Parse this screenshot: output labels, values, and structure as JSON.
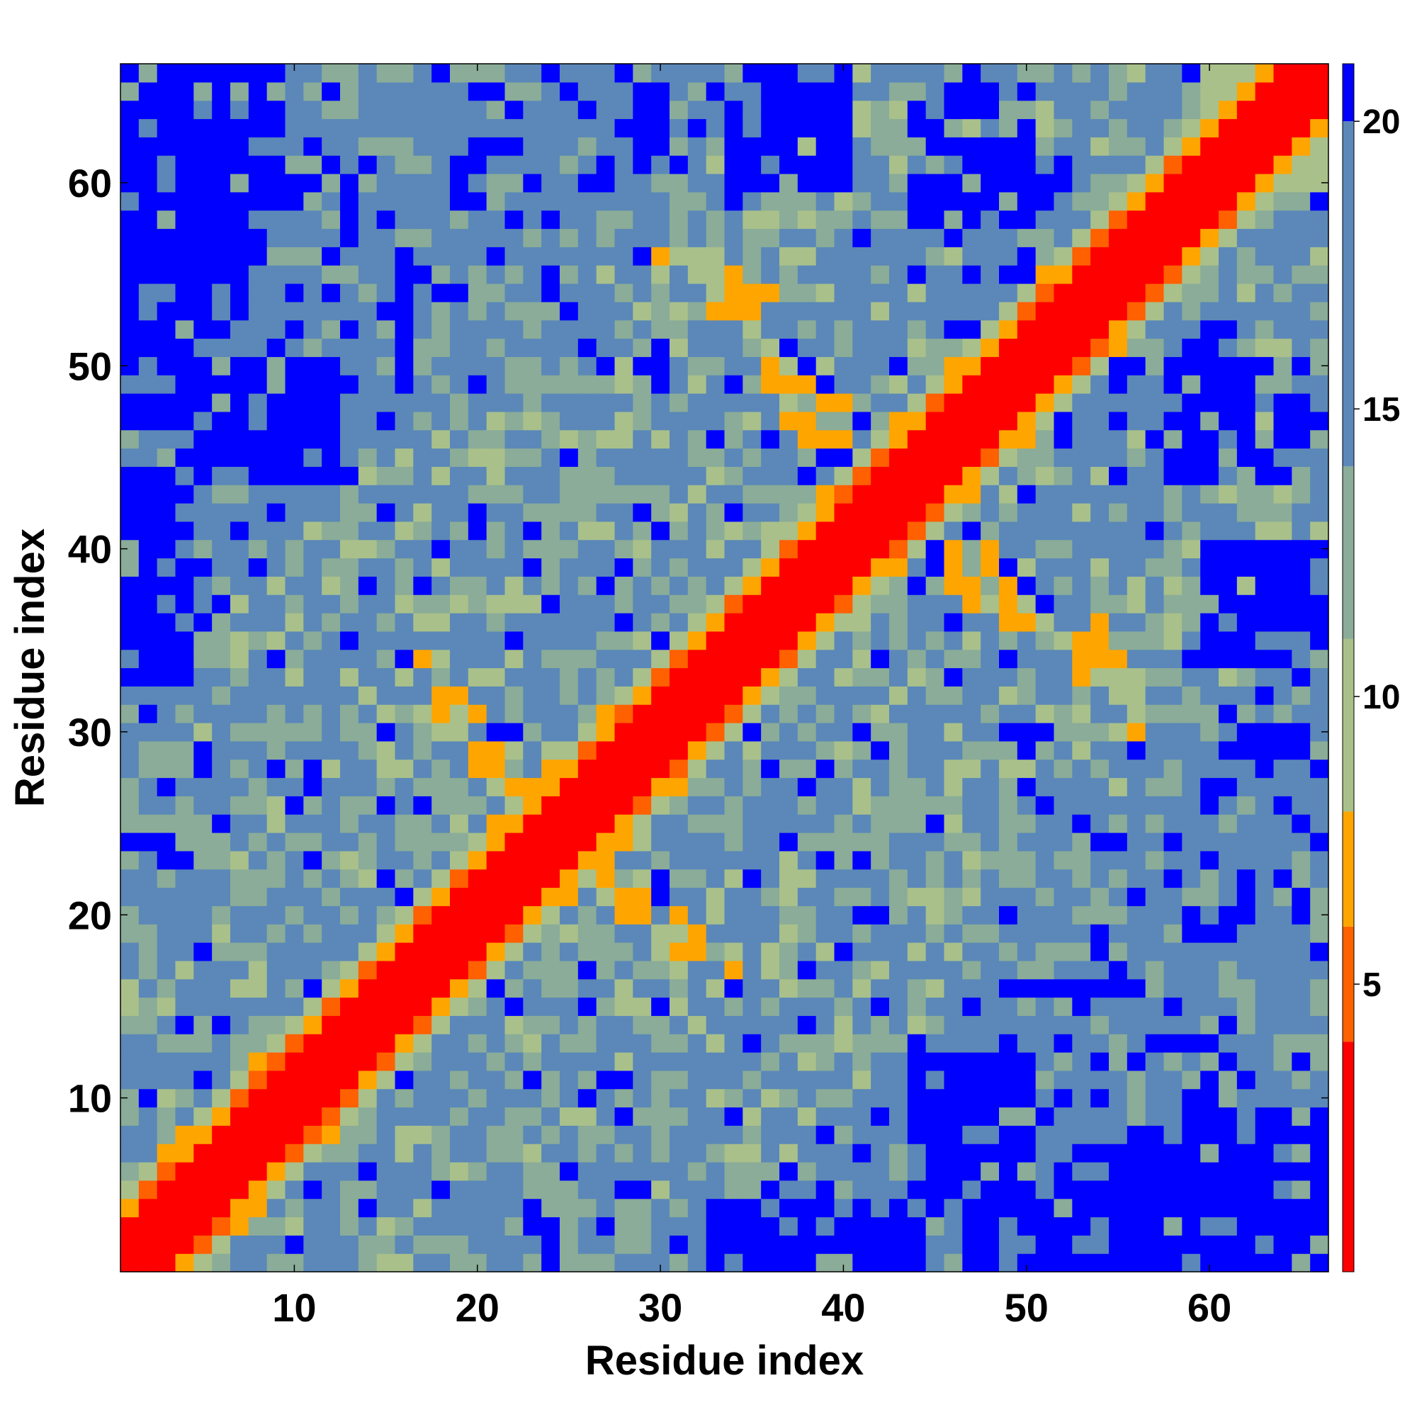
{
  "chart_data": {
    "type": "heatmap",
    "title": "",
    "xlabel": "Residue index",
    "ylabel": "Residue index",
    "n_residues": 66,
    "xlim": [
      0.5,
      66.5
    ],
    "ylim": [
      0.5,
      66.5
    ],
    "x_ticks": [
      10,
      20,
      30,
      40,
      50,
      60
    ],
    "y_ticks": [
      10,
      20,
      30,
      40,
      50,
      60
    ],
    "colorbar": {
      "range": [
        0,
        21
      ],
      "ticks": [
        5,
        10,
        15,
        20
      ],
      "position": "right",
      "colors": [
        "#ff0000",
        "#ff6000",
        "#ffa500",
        "#a9c08a",
        "#8aac98",
        "#5b88b8",
        "#0000ff"
      ],
      "stops": [
        4,
        6,
        8,
        11,
        14,
        20
      ]
    },
    "colors": {
      "red": "#ff0000",
      "orange_red": "#ff6000",
      "orange": "#ffa500",
      "light_green": "#a9c08a",
      "sage": "#8aac98",
      "steel_blue": "#5b88b8",
      "blue": "#0000ff"
    },
    "pattern": {
      "diagonal_band_max_offset": 2,
      "blue_blocks": [
        [
          1,
          5,
          50,
          66
        ],
        [
          6,
          8,
          55,
          66
        ],
        [
          1,
          4,
          33,
          45
        ],
        [
          34,
          40,
          60,
          66
        ],
        [
          57,
          66,
          1,
          6
        ],
        [
          60,
          66,
          6,
          9
        ],
        [
          40,
          48,
          1,
          3
        ],
        [
          44,
          50,
          3,
          12
        ],
        [
          58,
          65,
          44,
          50
        ],
        [
          60,
          65,
          29,
          30
        ]
      ],
      "secondary_bands": [
        [
          32,
          56,
          36,
          54
        ],
        [
          20,
          34,
          16,
          30
        ],
        [
          52,
          56,
          28,
          36
        ]
      ]
    }
  }
}
